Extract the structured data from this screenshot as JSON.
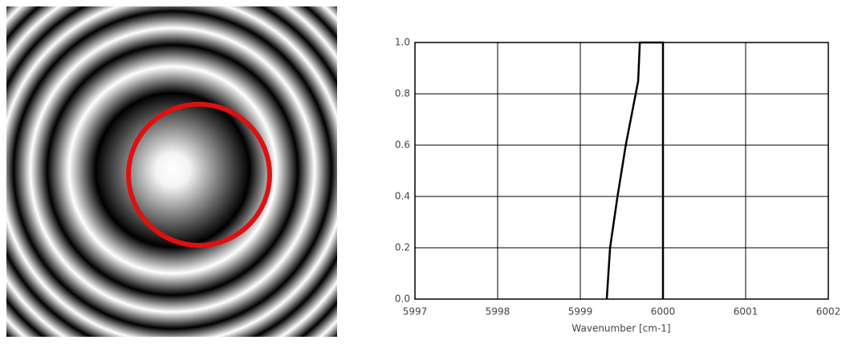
{
  "chart_data": {
    "type": "line",
    "xlabel": "Wavenumber [cm-1]",
    "xlim": [
      5997,
      6002
    ],
    "xticks": [
      5997,
      5998,
      5999,
      6000,
      6001,
      6002
    ],
    "ylim": [
      0,
      1
    ],
    "yticks": [
      {
        "value": 0,
        "label": "0.0"
      },
      0.2,
      0.4,
      0.6,
      0.8,
      {
        "value": 1,
        "label": "1.0"
      }
    ],
    "grid": true,
    "series": [
      {
        "color": "#000000",
        "x": [
          5999.32,
          5999.36,
          5999.45,
          5999.55,
          5999.64,
          5999.7,
          5999.72,
          5999.75,
          6000,
          6000,
          6000
        ],
        "values": [
          0,
          0.2,
          0.4,
          0.6,
          0.75,
          0.85,
          1.0,
          1.0,
          1.0,
          0.5,
          0
        ]
      }
    ]
  }
}
